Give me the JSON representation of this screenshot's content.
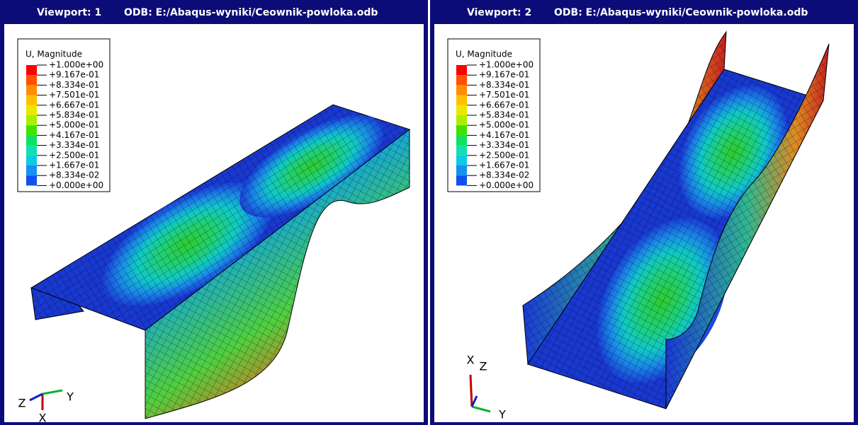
{
  "viewports": [
    {
      "label": "Viewport: 1",
      "odb": "ODB: E:/Abaqus-wyniki/Ceownik-powloka.odb",
      "legend": {
        "title": "U, Magnitude",
        "levels": [
          "+1.000e+00",
          "+9.167e-01",
          "+8.334e-01",
          "+7.501e-01",
          "+6.667e-01",
          "+5.834e-01",
          "+5.000e-01",
          "+4.167e-01",
          "+3.334e-01",
          "+2.500e-01",
          "+1.667e-01",
          "+8.334e-02",
          "+0.000e+00"
        ]
      },
      "triad": {
        "x": "X",
        "y": "Y",
        "z": "Z"
      }
    },
    {
      "label": "Viewport: 2",
      "odb": "ODB: E:/Abaqus-wyniki/Ceownik-powloka.odb",
      "legend": {
        "title": "U, Magnitude",
        "levels": [
          "+1.000e+00",
          "+9.167e-01",
          "+8.334e-01",
          "+7.501e-01",
          "+6.667e-01",
          "+5.834e-01",
          "+5.000e-01",
          "+4.167e-01",
          "+3.334e-01",
          "+2.500e-01",
          "+1.667e-01",
          "+8.334e-02",
          "+0.000e+00"
        ]
      },
      "triad": {
        "x": "X",
        "y": "Y",
        "z": "Z"
      }
    }
  ]
}
